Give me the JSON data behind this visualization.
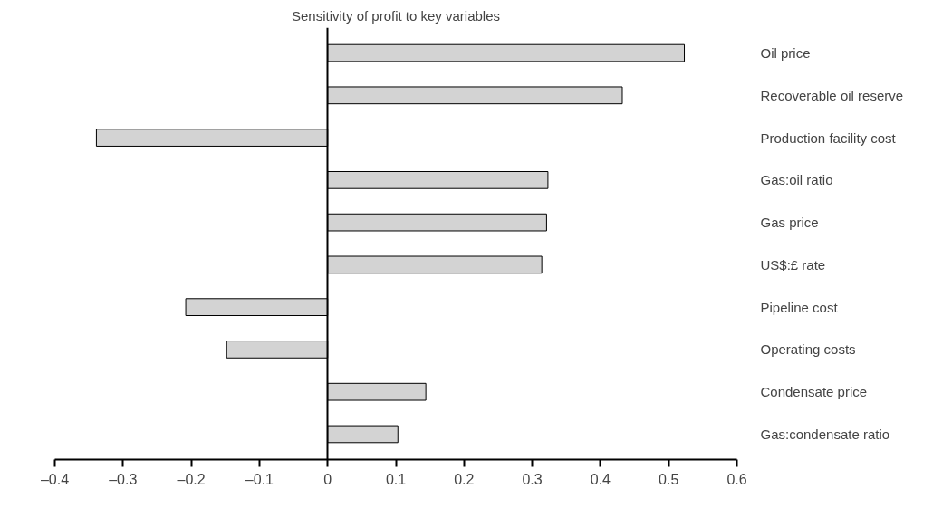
{
  "chart_data": {
    "type": "bar",
    "orientation": "horizontal",
    "title": "Sensitivity of profit to key variables",
    "categories": [
      "Oil price",
      "Recoverable oil reserve",
      "Production facility cost",
      "Gas:oil ratio",
      "Gas price",
      "US$:£ rate",
      "Pipeline cost",
      "Operating costs",
      "Condensate price",
      "Gas:condensate ratio"
    ],
    "values": [
      0.523,
      0.432,
      -0.339,
      0.323,
      0.321,
      0.314,
      -0.208,
      -0.148,
      0.144,
      0.103
    ],
    "color": "#d3d3d3",
    "xlim": [
      -0.4,
      0.6
    ],
    "xticks": [
      {
        "value": -0.4,
        "label": "–0.4"
      },
      {
        "value": -0.3,
        "label": "–0.3"
      },
      {
        "value": -0.2,
        "label": "–0.2"
      },
      {
        "value": -0.1,
        "label": "–0.1"
      },
      0,
      0.1,
      0.2,
      0.3,
      0.4,
      0.5,
      0.6
    ]
  }
}
